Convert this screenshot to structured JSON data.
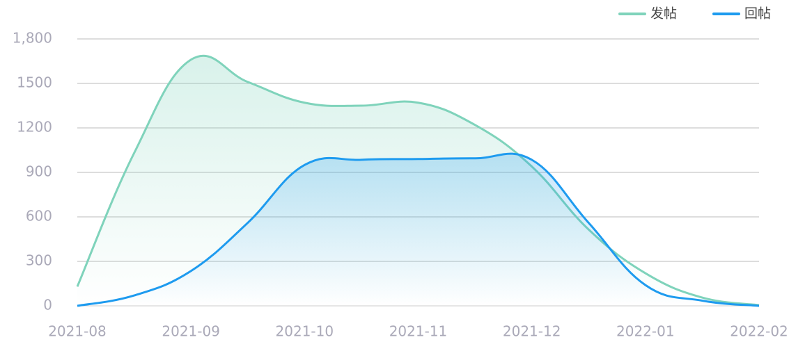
{
  "chart_data": {
    "type": "line",
    "categories": [
      "2021-08",
      null,
      "2021-09",
      null,
      "2021-10",
      null,
      "2021-11",
      null,
      "2021-12",
      null,
      "2022-01",
      null,
      "2022-02"
    ],
    "series": [
      {
        "name": "发帖",
        "color": "#7fd3bb",
        "values": [
          130,
          1030,
          1660,
          1510,
          1370,
          1350,
          1370,
          1220,
          940,
          515,
          220,
          56,
          5
        ]
      },
      {
        "name": "回帖",
        "color": "#1e9bef",
        "values": [
          0,
          70,
          235,
          560,
          950,
          985,
          990,
          995,
          985,
          560,
          140,
          35,
          0
        ]
      }
    ],
    "ylim": [
      0,
      1800
    ],
    "yticks": [
      0,
      300,
      600,
      900,
      1200,
      1500,
      {
        "value": 1800,
        "label": "1,800"
      }
    ],
    "grid": true,
    "legend": "top-right"
  }
}
